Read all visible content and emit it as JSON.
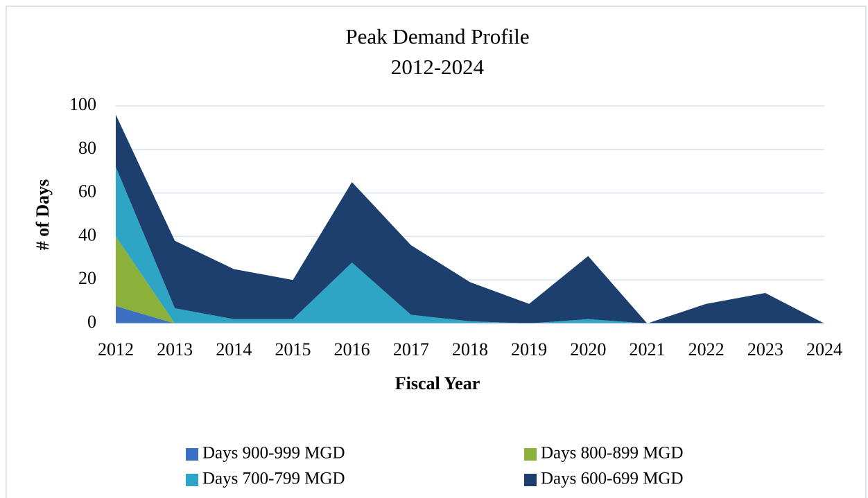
{
  "chart_data": {
    "type": "stacked_area",
    "title": "Peak Demand Profile",
    "subtitle": "2012-2024",
    "x_label": "Fiscal Year",
    "y_label": "# of Days",
    "categories": [
      "2012",
      "2013",
      "2014",
      "2015",
      "2016",
      "2017",
      "2018",
      "2019",
      "2020",
      "2021",
      "2022",
      "2023",
      "2024"
    ],
    "series": [
      {
        "name": "Days 900-999 MGD",
        "color": "#3b6fc1",
        "values": [
          8,
          0,
          0,
          0,
          0,
          0,
          0,
          0,
          0,
          0,
          0,
          0,
          0
        ]
      },
      {
        "name": "Days 800-899 MGD",
        "color": "#8bb13a",
        "values": [
          32,
          0,
          0,
          0,
          0,
          0,
          0,
          0,
          0,
          0,
          0,
          0,
          0
        ]
      },
      {
        "name": "Days 700-799 MGD",
        "color": "#2ea5c4",
        "values": [
          32,
          7,
          2,
          2,
          28,
          4,
          1,
          0,
          2,
          0,
          0,
          0,
          0
        ]
      },
      {
        "name": "Days 600-699 MGD",
        "color": "#1c3f6e",
        "values": [
          24,
          31,
          23,
          18,
          37,
          32,
          18,
          9,
          29,
          0,
          9,
          14,
          0
        ]
      }
    ],
    "ylim": [
      0,
      100
    ],
    "yticks": [
      0,
      20,
      40,
      60,
      80,
      100
    ],
    "grid": true,
    "legend": "bottom"
  }
}
